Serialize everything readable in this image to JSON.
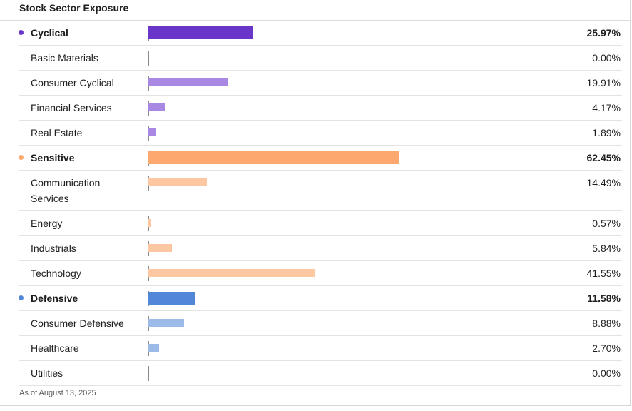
{
  "title": "Stock Sector Exposure",
  "footnote": "As of August 13, 2025",
  "colors": {
    "cyclical": "#6a35c9",
    "cyclical_light": "#a888e3",
    "sensitive": "#fda86f",
    "sensitive_light": "#fdc7a1",
    "defensive": "#5187d6",
    "defensive_light": "#9dbbe8"
  },
  "chart_data": {
    "type": "bar",
    "title": "Stock Sector Exposure",
    "orientation": "horizontal",
    "unit": "%",
    "rows": [
      {
        "label": "Cyclical",
        "value": 25.97,
        "display": "25.97%",
        "group": true,
        "color": "#6a35c9"
      },
      {
        "label": "Basic Materials",
        "value": 0.0,
        "display": "0.00%",
        "group": false,
        "color": "#a888e3"
      },
      {
        "label": "Consumer Cyclical",
        "value": 19.91,
        "display": "19.91%",
        "group": false,
        "color": "#a888e3"
      },
      {
        "label": "Financial Services",
        "value": 4.17,
        "display": "4.17%",
        "group": false,
        "color": "#a888e3"
      },
      {
        "label": "Real Estate",
        "value": 1.89,
        "display": "1.89%",
        "group": false,
        "color": "#a888e3"
      },
      {
        "label": "Sensitive",
        "value": 62.45,
        "display": "62.45%",
        "group": true,
        "color": "#fda86f"
      },
      {
        "label": "Communication Services",
        "value": 14.49,
        "display": "14.49%",
        "group": false,
        "color": "#fdc7a1"
      },
      {
        "label": "Energy",
        "value": 0.57,
        "display": "0.57%",
        "group": false,
        "color": "#fdc7a1"
      },
      {
        "label": "Industrials",
        "value": 5.84,
        "display": "5.84%",
        "group": false,
        "color": "#fdc7a1"
      },
      {
        "label": "Technology",
        "value": 41.55,
        "display": "41.55%",
        "group": false,
        "color": "#fdc7a1"
      },
      {
        "label": "Defensive",
        "value": 11.58,
        "display": "11.58%",
        "group": true,
        "color": "#5187d6"
      },
      {
        "label": "Consumer Defensive",
        "value": 8.88,
        "display": "8.88%",
        "group": false,
        "color": "#9dbbe8"
      },
      {
        "label": "Healthcare",
        "value": 2.7,
        "display": "2.70%",
        "group": false,
        "color": "#9dbbe8"
      },
      {
        "label": "Utilities",
        "value": 0.0,
        "display": "0.00%",
        "group": false,
        "color": "#9dbbe8"
      }
    ]
  }
}
